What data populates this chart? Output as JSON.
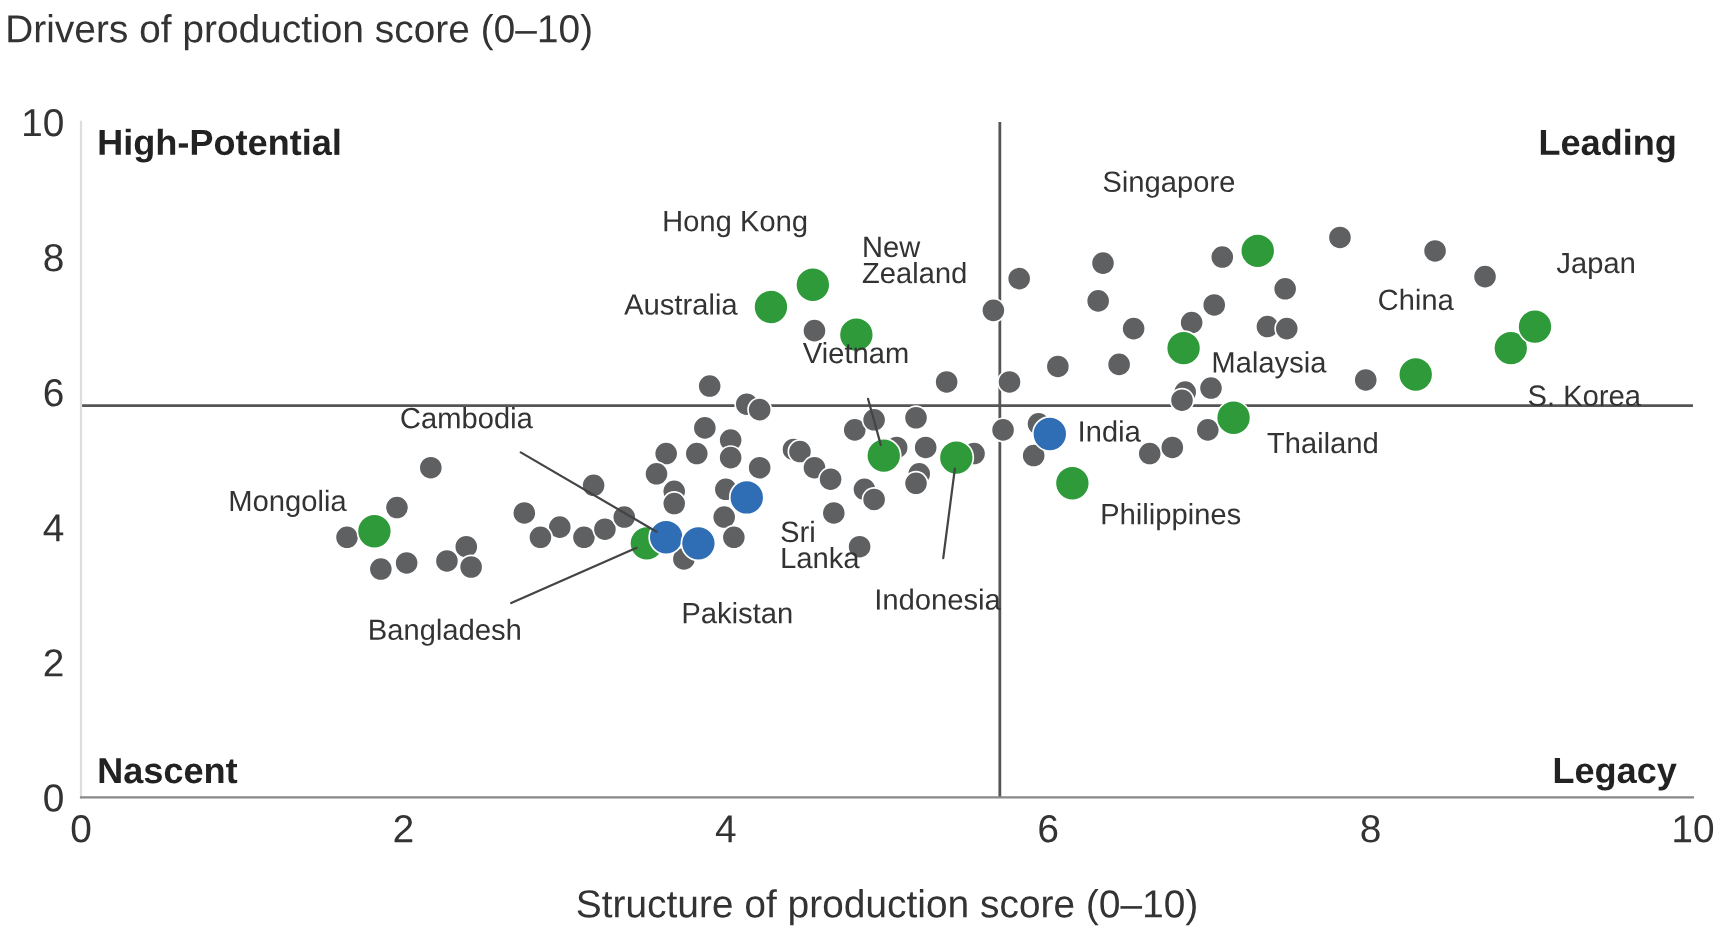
{
  "chart_data": {
    "type": "scatter",
    "xlabel": "Structure of production score (0–10)",
    "ylabel": "Drivers of production score (0–10)",
    "xlim": [
      0,
      10
    ],
    "xticks": [
      0,
      2,
      4,
      6,
      8,
      10
    ],
    "ylim": [
      0,
      10
    ],
    "yticks": [
      0,
      2,
      4,
      6,
      8,
      10
    ],
    "grid": false,
    "legend": false,
    "marker": "circle",
    "ref_lines": [
      {
        "axis": "x",
        "value": 5.7,
        "label": null,
        "color": "#555555"
      },
      {
        "axis": "y",
        "value": 5.8,
        "label": null,
        "color": "#555555"
      }
    ],
    "series": [
      {
        "color": "#5f6062",
        "x": [
          3.9,
          4.13,
          4.21,
          3.87,
          4.03,
          2.17,
          3.63,
          3.82,
          4.03,
          4.21,
          4.42,
          3.18,
          3.57,
          3.68,
          3.68,
          4.0,
          2.75,
          1.96,
          2.97,
          2.85,
          3.12,
          3.25,
          3.37,
          3.99,
          1.65,
          2.39,
          2.42,
          2.27,
          2.02,
          1.86,
          4.05,
          3.74,
          5.82,
          5.66,
          4.55,
          6.06,
          5.37,
          5.76,
          4.8,
          4.92,
          5.18,
          5.72,
          4.46,
          4.55,
          4.65,
          4.86,
          4.92,
          5.06,
          5.24,
          5.2,
          5.18,
          5.54,
          4.67,
          4.83,
          5.91,
          7.81,
          8.4,
          8.71,
          7.08,
          6.34,
          7.47,
          6.31,
          7.03,
          6.53,
          6.89,
          7.36,
          7.48,
          6.44,
          7.97,
          6.85,
          7.01,
          6.83,
          5.94,
          6.63,
          6.77,
          6.99
        ],
        "values": [
          6.09,
          5.82,
          5.74,
          5.47,
          5.29,
          4.88,
          5.09,
          5.09,
          5.03,
          4.88,
          5.15,
          4.62,
          4.79,
          4.53,
          4.35,
          4.56,
          4.21,
          4.29,
          4.0,
          3.85,
          3.85,
          3.97,
          4.15,
          4.15,
          3.85,
          3.71,
          3.41,
          3.5,
          3.47,
          3.38,
          3.85,
          3.53,
          7.68,
          7.21,
          6.91,
          6.38,
          6.15,
          6.15,
          5.44,
          5.59,
          5.62,
          5.44,
          5.12,
          4.88,
          4.71,
          4.56,
          4.41,
          5.18,
          5.18,
          4.79,
          4.65,
          5.09,
          4.21,
          3.71,
          5.06,
          8.29,
          8.09,
          7.71,
          8.0,
          7.91,
          7.53,
          7.35,
          7.29,
          6.94,
          7.03,
          6.97,
          6.94,
          6.41,
          6.18,
          6.0,
          6.06,
          5.88,
          5.53,
          5.09,
          5.18,
          5.44
        ]
      },
      {
        "color": "#2e9a3a",
        "x": [
          1.82,
          3.51,
          4.28,
          4.54,
          4.81,
          4.98,
          5.43,
          6.15,
          6.84,
          7.15,
          7.3,
          8.28,
          8.87,
          9.02
        ],
        "values": [
          3.94,
          3.76,
          7.26,
          7.59,
          6.85,
          5.06,
          5.03,
          4.65,
          6.65,
          5.62,
          8.09,
          6.26,
          6.65,
          6.97
        ]
      },
      {
        "color": "#2f6db5",
        "x": [
          3.63,
          3.83,
          4.13,
          6.01
        ],
        "values": [
          3.85,
          3.76,
          4.44,
          5.38
        ]
      }
    ],
    "annotations": [
      "High-Potential",
      "Leading",
      "Nascent",
      "Legacy",
      {
        "text": "Mongolia",
        "x": 1.82,
        "y": 3.94
      },
      {
        "text": "Cambodia",
        "x": 3.63,
        "y": 3.85
      },
      {
        "text": "Bangladesh",
        "x": 3.51,
        "y": 3.76
      },
      {
        "text": "Pakistan",
        "x": 3.83,
        "y": 3.76
      },
      {
        "text": "Sri\nLanka",
        "x": 4.13,
        "y": 4.44
      },
      {
        "text": "Australia",
        "x": 4.28,
        "y": 7.26
      },
      {
        "text": "Hong Kong",
        "x": 4.54,
        "y": 7.59
      },
      {
        "text": "New\nZealand",
        "x": 4.81,
        "y": 6.85
      },
      {
        "text": "Vietnam",
        "x": 4.98,
        "y": 5.06
      },
      {
        "text": "Indonesia",
        "x": 5.43,
        "y": 5.03
      },
      {
        "text": "India",
        "x": 6.01,
        "y": 5.38
      },
      {
        "text": "Philippines",
        "x": 6.15,
        "y": 4.65
      },
      {
        "text": "Malaysia",
        "x": 6.84,
        "y": 6.65
      },
      {
        "text": "Thailand",
        "x": 7.15,
        "y": 5.62
      },
      {
        "text": "Singapore",
        "x": 7.3,
        "y": 8.09
      },
      {
        "text": "China",
        "x": 8.28,
        "y": 6.26
      },
      {
        "text": "S. Korea",
        "x": 8.87,
        "y": 6.65
      },
      {
        "text": "Japan",
        "x": 9.02,
        "y": 6.97
      }
    ]
  }
}
